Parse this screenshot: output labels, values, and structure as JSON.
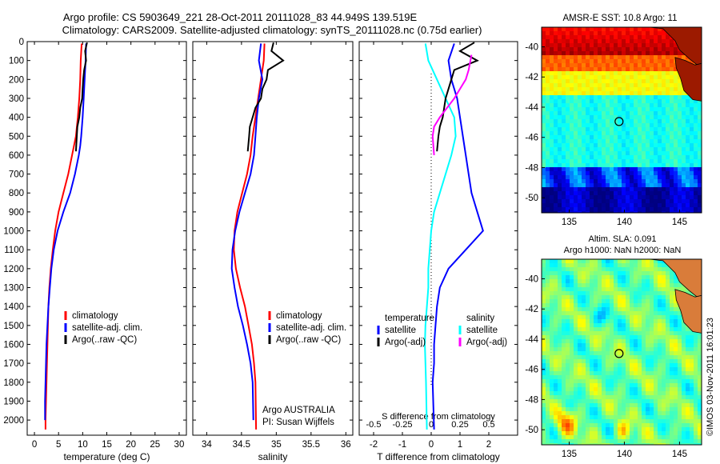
{
  "title_line1": "Argo profile: CS 5903649_221 28-Oct-2011 20111028_83 44.949S 139.519E",
  "title_line2": "Climatology: CARS2009. Satellite-adjusted climatology: synTS_20111028.nc (0.75d earlier)",
  "side_credit": "©IMOS 03-Nov-2011 16:01:23",
  "colors": {
    "climatology": "#ff0000",
    "satellite": "#0000ff",
    "argo": "#000000",
    "satellite_s": "#00ffff",
    "argo_s": "#ff00ff"
  },
  "chart_data": [
    {
      "type": "line",
      "xlabel": "temperature (deg C)",
      "ylabel": "",
      "xlim": [
        -1.5,
        31.5
      ],
      "ylim": [
        2080,
        0
      ],
      "xticks": [
        "0",
        "5",
        "10",
        "15",
        "20",
        "25",
        "30"
      ],
      "yticks": [
        "0",
        "100",
        "200",
        "300",
        "400",
        "500",
        "600",
        "700",
        "800",
        "900",
        "1000",
        "1100",
        "1200",
        "1300",
        "1400",
        "1500",
        "1600",
        "1700",
        "1800",
        "1900",
        "2000"
      ],
      "legend": [
        "climatology",
        "satellite-adj. clim.",
        "Argo(..raw -QC)"
      ],
      "series": [
        {
          "name": "climatology",
          "color": "#ff0000",
          "x": [
            9.8,
            9.6,
            9.5,
            9.3,
            9.0,
            8.6,
            8.2,
            7.8,
            7.0,
            6.0,
            5.0,
            4.3,
            3.8,
            3.4,
            3.1,
            2.9,
            2.8,
            2.7,
            2.6,
            2.5,
            2.4,
            2.3,
            2.3
          ],
          "y": [
            10,
            100,
            200,
            300,
            400,
            500,
            550,
            600,
            700,
            800,
            900,
            1000,
            1100,
            1200,
            1300,
            1400,
            1500,
            1600,
            1700,
            1800,
            1900,
            2000,
            2050
          ]
        },
        {
          "name": "satellite-adj. clim.",
          "color": "#0000ff",
          "x": [
            10.7,
            10.6,
            10.4,
            10.2,
            10.0,
            9.7,
            9.5,
            9.2,
            8.4,
            7.4,
            6.0,
            4.8,
            4.0,
            3.5,
            3.2,
            2.9,
            2.7,
            2.5,
            2.4,
            2.3,
            2.2,
            2.2
          ],
          "y": [
            10,
            100,
            200,
            300,
            400,
            500,
            550,
            600,
            700,
            800,
            900,
            1000,
            1100,
            1200,
            1300,
            1400,
            1500,
            1600,
            1700,
            1800,
            1900,
            2000
          ]
        },
        {
          "name": "Argo(..raw -QC)",
          "color": "#000000",
          "x": [
            10.9,
            10.5,
            10.7,
            10.3,
            10.1,
            10.0,
            9.9,
            9.5,
            9.3,
            8.9,
            8.6
          ],
          "y": [
            5,
            50,
            100,
            150,
            200,
            250,
            300,
            350,
            400,
            450,
            580
          ]
        }
      ]
    },
    {
      "type": "line",
      "xlabel": "salinity",
      "ylabel": "",
      "xlim": [
        33.8,
        36.1
      ],
      "ylim": [
        2080,
        0
      ],
      "xticks": [
        "34",
        "34.5",
        "35",
        "35.5",
        "36"
      ],
      "legend": [
        "climatology",
        "satellite-adj. clim.",
        "Argo(..raw -QC)"
      ],
      "annotation_line1": "Argo AUSTRALIA",
      "annotation_line2": "PI: Susan Wijffels",
      "series": [
        {
          "name": "climatology",
          "color": "#ff0000",
          "x": [
            34.83,
            34.82,
            34.78,
            34.74,
            34.7,
            34.66,
            34.63,
            34.58,
            34.51,
            34.44,
            34.4,
            34.39,
            34.42,
            34.48,
            34.55,
            34.6,
            34.65,
            34.68,
            34.7,
            34.71
          ],
          "y": [
            10,
            100,
            200,
            300,
            400,
            500,
            600,
            700,
            800,
            900,
            1000,
            1100,
            1200,
            1300,
            1400,
            1500,
            1600,
            1700,
            1800,
            2050
          ]
        },
        {
          "name": "satellite-adj. clim.",
          "color": "#0000ff",
          "x": [
            34.78,
            34.75,
            34.8,
            34.75,
            34.72,
            34.7,
            34.68,
            34.63,
            34.55,
            34.47,
            34.41,
            34.37,
            34.36,
            34.4,
            34.45,
            34.52,
            34.58,
            34.63,
            34.66,
            34.67
          ],
          "y": [
            10,
            100,
            200,
            300,
            400,
            500,
            600,
            700,
            800,
            900,
            1000,
            1100,
            1200,
            1300,
            1400,
            1500,
            1600,
            1700,
            1800,
            2000
          ]
        },
        {
          "name": "Argo(..raw -QC)",
          "color": "#000000",
          "x": [
            34.96,
            34.93,
            35.1,
            34.88,
            34.86,
            34.8,
            34.78,
            34.7,
            34.66,
            34.62,
            34.61,
            34.59
          ],
          "y": [
            5,
            50,
            100,
            150,
            200,
            250,
            300,
            350,
            400,
            450,
            500,
            580
          ]
        }
      ]
    },
    {
      "type": "line",
      "xlabel": "T difference from climatology",
      "xlabel_top": "S difference from climatology",
      "ylabel": "",
      "xlim": [
        -2.5,
        3.0
      ],
      "ylim": [
        2080,
        0
      ],
      "xticks": [
        "-2",
        "-1",
        "0",
        "1",
        "2"
      ],
      "xticks_top": [
        "-0.5",
        "-0.25",
        "0",
        "0.25",
        "0.5"
      ],
      "legend_title_t": "temperature",
      "legend_title_s": "salinity",
      "legend_t": [
        "satellite",
        "Argo(-adj)"
      ],
      "legend_s": [
        "satellite",
        "Argo(-adj)"
      ],
      "series": [
        {
          "name": "T satellite",
          "color": "#0000ff",
          "x": [
            0.8,
            0.6,
            0.7,
            0.9,
            1.0,
            1.1,
            1.2,
            1.3,
            1.4,
            1.6,
            1.8,
            1.2,
            0.6,
            0.3,
            0.2,
            0.15,
            0.1,
            0.1,
            0.05,
            0.1
          ],
          "y": [
            10,
            100,
            200,
            300,
            400,
            500,
            600,
            700,
            800,
            900,
            1000,
            1100,
            1200,
            1300,
            1400,
            1500,
            1600,
            1700,
            1800,
            2050
          ]
        },
        {
          "name": "S satellite",
          "color": "#00ffff",
          "x": [
            -0.2,
            -0.1,
            0.2,
            0.5,
            0.8,
            0.85,
            0.7,
            0.5,
            0.3,
            0.1,
            0.0,
            -0.05,
            -0.1,
            -0.1,
            -0.15,
            -0.2,
            -0.22,
            -0.2,
            -0.18,
            -0.15
          ],
          "y": [
            10,
            100,
            200,
            300,
            400,
            500,
            600,
            700,
            800,
            900,
            1000,
            1100,
            1200,
            1300,
            1400,
            1500,
            1600,
            1700,
            1800,
            2050
          ]
        },
        {
          "name": "T Argo(-adj)",
          "color": "#000000",
          "x": [
            1.5,
            1.0,
            1.6,
            0.8,
            0.7,
            0.5,
            0.4,
            0.3,
            0.25,
            0.2
          ],
          "y": [
            5,
            50,
            100,
            150,
            200,
            300,
            400,
            450,
            500,
            580
          ]
        },
        {
          "name": "S Argo(-adj)",
          "color": "#ff00ff",
          "x": [
            1.4,
            1.3,
            1.2,
            1.0,
            0.8,
            0.3,
            0.1,
            0.05,
            0.1
          ],
          "y": [
            70,
            150,
            200,
            250,
            300,
            400,
            450,
            500,
            600
          ]
        }
      ]
    },
    {
      "type": "heatmap",
      "title": "AMSR-E SST: 10.8 Argo: 11",
      "xlim": [
        132.5,
        147
      ],
      "ylim": [
        -51,
        -38.7
      ],
      "xticks": [
        "135",
        "140",
        "145"
      ],
      "yticks": [
        "-40",
        "-42",
        "-44",
        "-46",
        "-48",
        "-50"
      ],
      "marker": {
        "lon": 139.519,
        "lat": -44.949
      }
    },
    {
      "type": "heatmap",
      "title_line1": "Altim. SLA: 0.091",
      "title_line2": "Argo h1000: NaN h2000: NaN",
      "xlim": [
        132.5,
        147
      ],
      "ylim": [
        -51,
        -38.7
      ],
      "xticks": [
        "135",
        "140",
        "145"
      ],
      "yticks": [
        "-40",
        "-42",
        "-44",
        "-46",
        "-48",
        "-50"
      ],
      "marker": {
        "lon": 139.519,
        "lat": -44.949
      }
    }
  ]
}
